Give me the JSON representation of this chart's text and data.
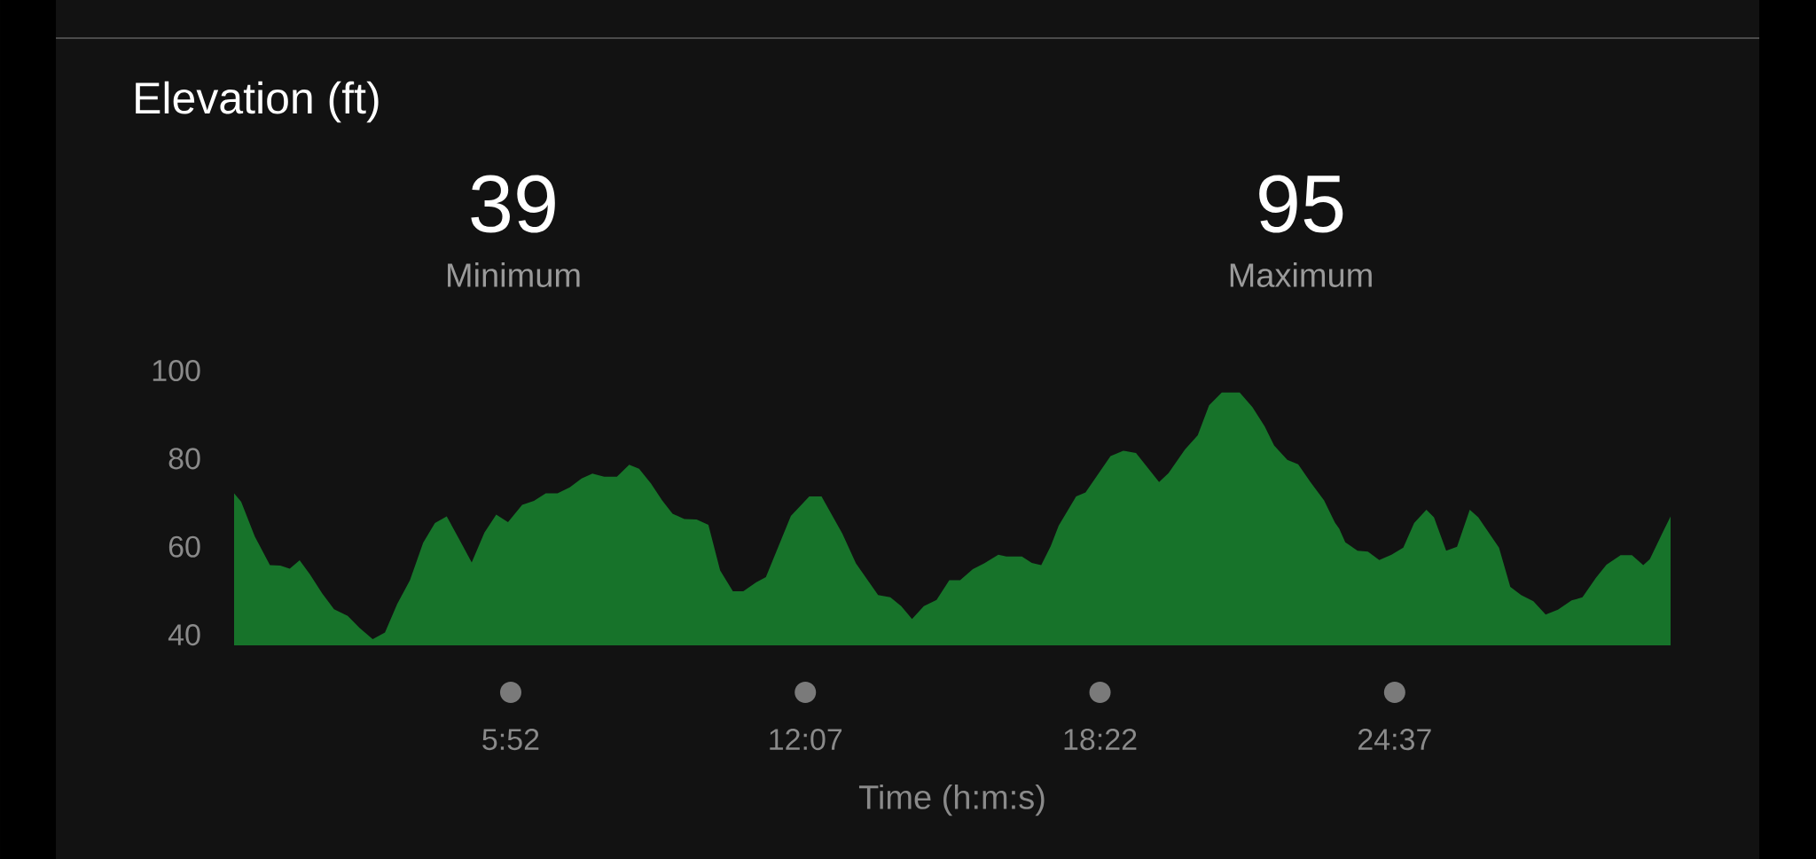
{
  "chart_data": {
    "type": "area",
    "title": "Elevation (ft)",
    "xlabel": "Time (h:m:s)",
    "annotations": [
      "39",
      "Minimum",
      "95",
      "Maximum"
    ],
    "x": [
      0,
      0.15,
      0.44,
      0.76,
      0.98,
      1.18,
      1.39,
      1.61,
      1.87,
      2.12,
      2.41,
      2.66,
      2.94,
      3.2,
      3.46,
      3.73,
      4.01,
      4.26,
      4.51,
      4.79,
      5.04,
      5.31,
      5.56,
      5.81,
      6.11,
      6.36,
      6.61,
      6.86,
      7.12,
      7.37,
      7.6,
      7.85,
      8.12,
      8.38,
      8.59,
      8.84,
      9.08,
      9.3,
      9.55,
      9.81,
      10.06,
      10.31,
      10.58,
      10.8,
      11.07,
      11.28,
      11.81,
      12.2,
      12.46,
      12.9,
      13.19,
      13.66,
      13.92,
      14.15,
      14.38,
      14.63,
      14.9,
      15.17,
      15.4,
      15.67,
      15.91,
      16.21,
      16.38,
      16.71,
      16.92,
      17.12,
      17.32,
      17.49,
      17.86,
      18.06,
      18.59,
      18.86,
      19.13,
      19.62,
      19.82,
      20.17,
      20.44,
      20.68,
      20.95,
      21.33,
      21.6,
      21.86,
      22.06,
      22.34,
      22.57,
      22.83,
      23.12,
      23.35,
      23.44,
      23.57,
      23.83,
      24.05,
      24.29,
      24.55,
      24.8,
      25.03,
      25.29,
      25.45,
      25.71,
      25.94,
      26.21,
      26.39,
      26.83,
      27.07,
      27.3,
      27.56,
      27.82,
      28.08,
      28.37,
      28.6,
      28.89,
      29.11,
      29.41,
      29.65,
      29.89,
      30.03,
      30.31,
      30.47
    ],
    "series": [
      {
        "color": "#17732a",
        "values": [
          72.1,
          70.2,
          62.3,
          55.8,
          55.7,
          55,
          56.9,
          53.7,
          49.4,
          45.8,
          44.3,
          41.6,
          39,
          40.5,
          47,
          52.4,
          60.9,
          65.4,
          66.9,
          61.4,
          56.4,
          63.2,
          67.3,
          65.6,
          69.5,
          70.4,
          72.1,
          72.1,
          73.5,
          75.5,
          76.6,
          75.9,
          75.9,
          78.6,
          77.7,
          74.4,
          70.5,
          67.5,
          66.3,
          66.2,
          65,
          54.6,
          49.9,
          49.9,
          51.9,
          53.1,
          67,
          71.4,
          71.4,
          63,
          56.2,
          49,
          48.5,
          46.5,
          43.6,
          46.5,
          47.9,
          52.4,
          52.4,
          54.9,
          56.2,
          58.2,
          57.8,
          57.8,
          56.3,
          55.8,
          60.1,
          64.8,
          71.4,
          72.3,
          80.6,
          81.8,
          81.3,
          74.7,
          76.7,
          82.1,
          85.3,
          92.1,
          95,
          95,
          91.7,
          87.3,
          83,
          79.7,
          78.7,
          74.7,
          70.5,
          65.5,
          64.1,
          61,
          59.1,
          58.9,
          57,
          58.2,
          59.8,
          65.4,
          68.4,
          66.7,
          59.1,
          60,
          68.4,
          66.7,
          59.8,
          50.9,
          49,
          47.6,
          44.6,
          45.7,
          47.8,
          48.5,
          53,
          55.9,
          58.1,
          58.1,
          55.8,
          57.2,
          63.4,
          66.9
        ]
      }
    ],
    "xlim": [
      0,
      30.47
    ],
    "ylim": [
      37.8,
      100
    ],
    "xticks": [
      {
        "value": 5.867,
        "label": "5:52"
      },
      {
        "value": 12.117,
        "label": "12:07"
      },
      {
        "value": 18.367,
        "label": "18:22"
      },
      {
        "value": 24.617,
        "label": "24:37"
      }
    ],
    "yticks": [
      {
        "value": 40,
        "label": "40"
      },
      {
        "value": 60,
        "label": "60"
      },
      {
        "value": 80,
        "label": "80"
      },
      {
        "value": 100,
        "label": "100"
      }
    ],
    "grid": false,
    "marker": "none"
  }
}
